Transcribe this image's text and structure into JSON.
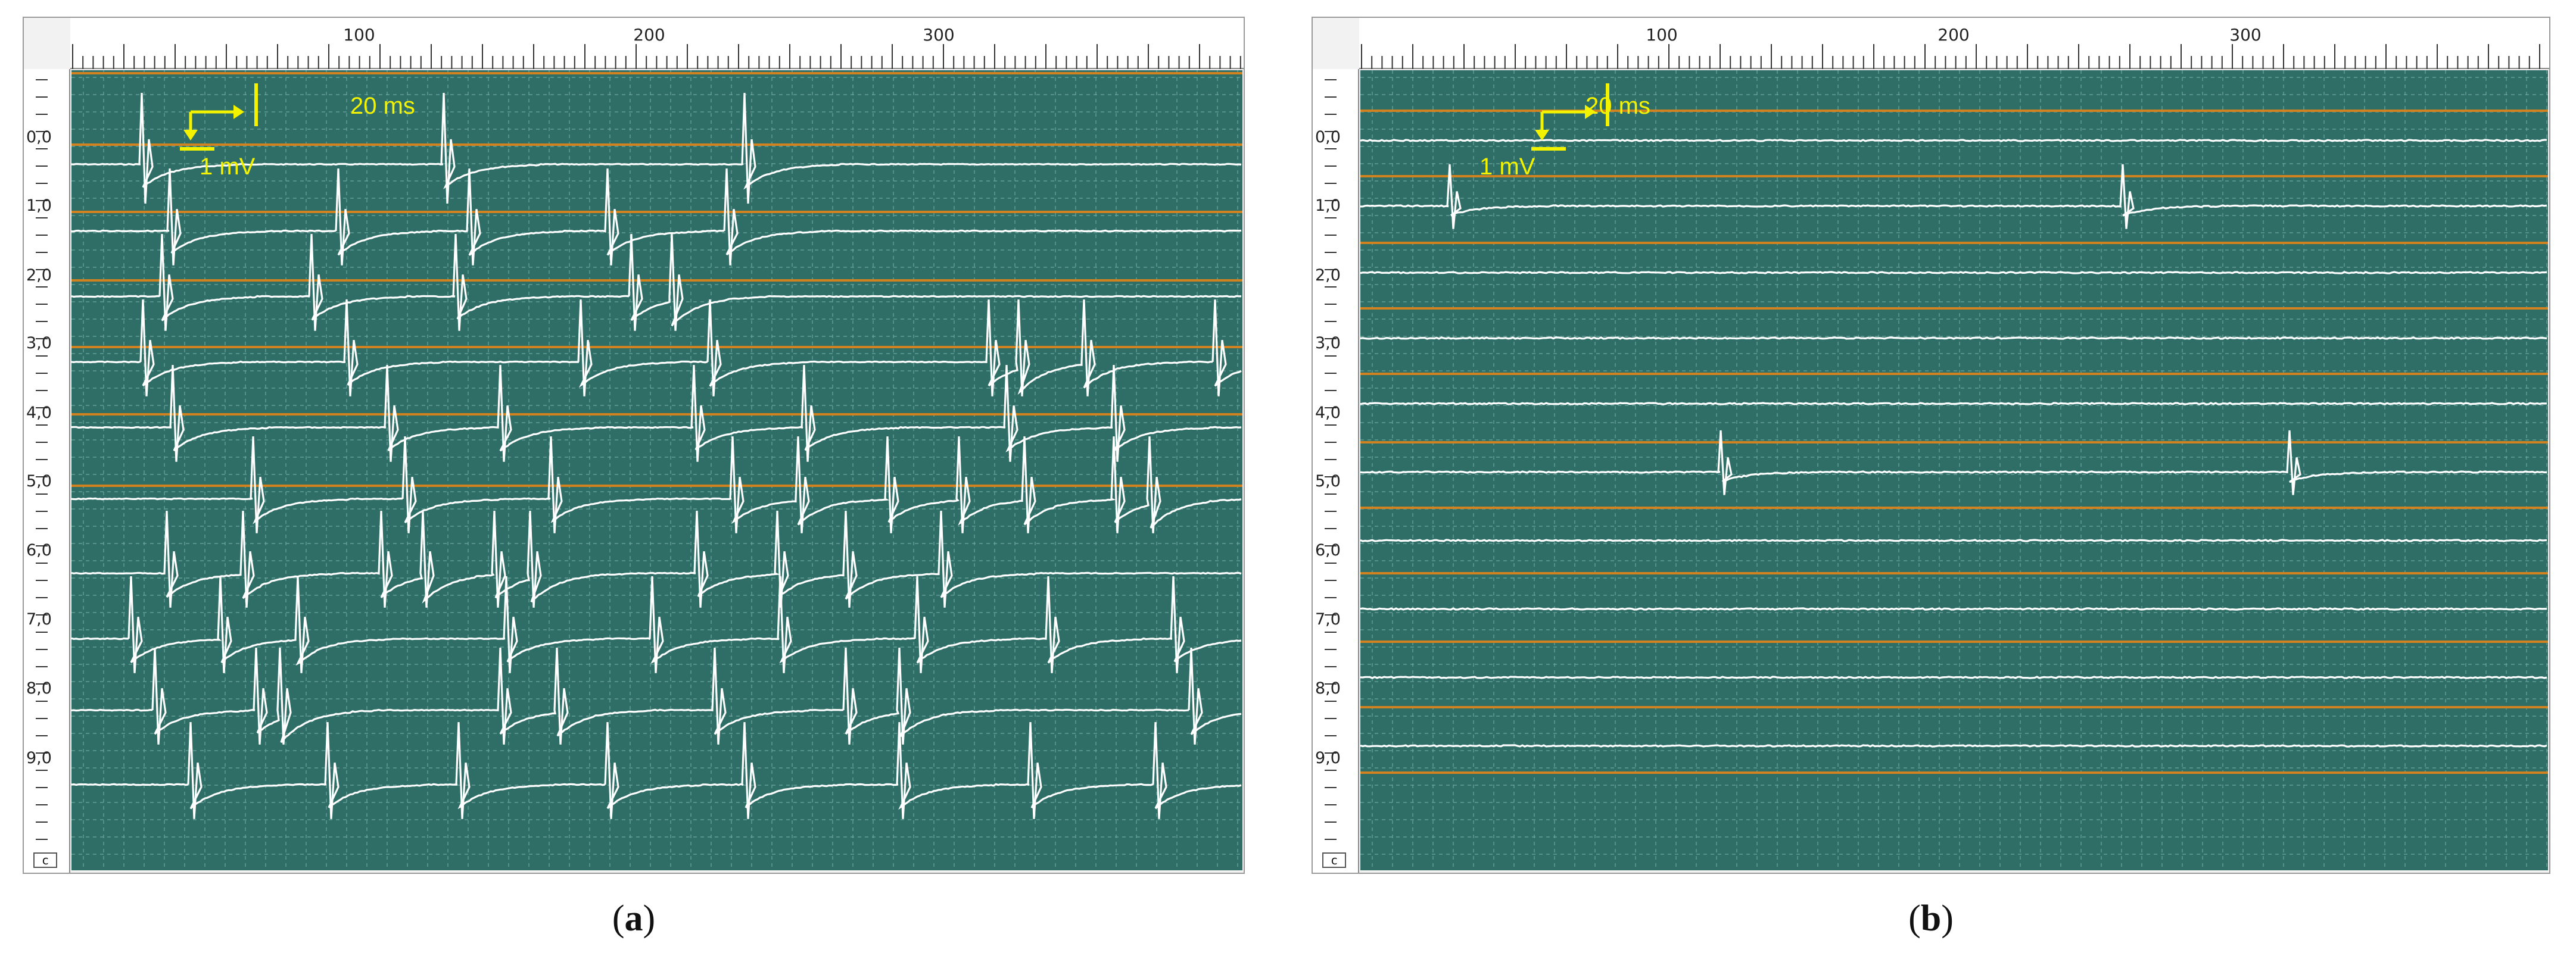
{
  "panels": [
    {
      "id": "a",
      "caption_open": "(",
      "caption_letter": "a",
      "caption_close": ")",
      "corner_label": "c",
      "x_tick_labels": [
        "100",
        "200",
        "300"
      ],
      "row_labels": [
        "0,0",
        "1,0",
        "2,0",
        "3,0",
        "4,0",
        "5,0",
        "6,0",
        "7,0",
        "8,0",
        "9,0"
      ],
      "scale_bar": {
        "time_label": "20 ms",
        "voltage_label": "1 mV"
      },
      "colors": {
        "background": "#2e6e67",
        "trace": "#ffffff",
        "baseline": "#d2821e",
        "scale": "#f3f300"
      }
    },
    {
      "id": "b",
      "caption_open": "(",
      "caption_letter": "b",
      "caption_close": ")",
      "corner_label": "c",
      "x_tick_labels": [
        "100",
        "200",
        "300"
      ],
      "row_labels": [
        "0,0",
        "1,0",
        "2,0",
        "3,0",
        "4,0",
        "5,0",
        "6,0",
        "7,0",
        "8,0",
        "9,0"
      ],
      "scale_bar": {
        "time_label": "20 ms",
        "voltage_label": "1 mV"
      },
      "colors": {
        "background": "#2e6e67",
        "trace": "#ffffff",
        "baseline": "#d2821e",
        "scale": "#f3f300"
      }
    }
  ]
}
